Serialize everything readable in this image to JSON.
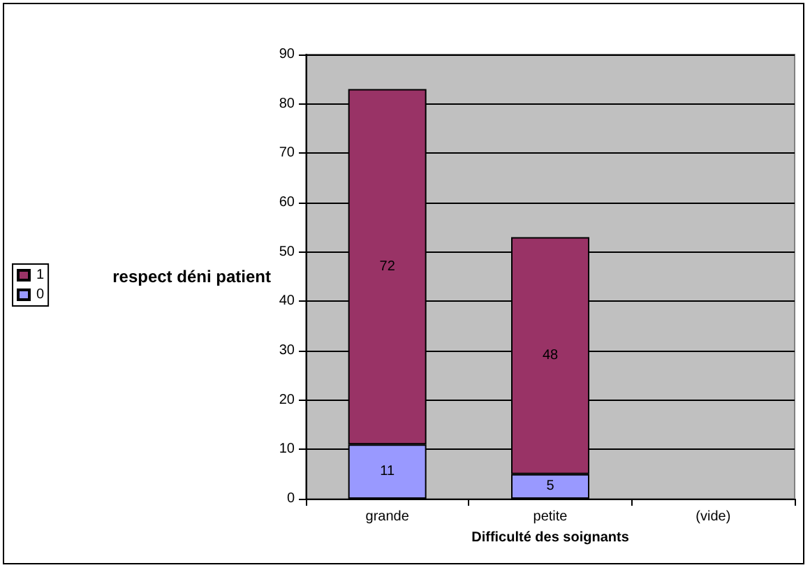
{
  "chart_data": {
    "type": "bar",
    "stacked": true,
    "xlabel": "Difficulté des soignants",
    "ylabel": "respect déni patient",
    "categories": [
      "grande",
      "petite",
      "(vide)"
    ],
    "series": [
      {
        "name": "0",
        "color": "#9999ff",
        "values": [
          11,
          5,
          null
        ]
      },
      {
        "name": "1",
        "color": "#993366",
        "values": [
          72,
          48,
          null
        ]
      }
    ],
    "ylim": [
      0,
      90
    ],
    "yticks": [
      0,
      10,
      20,
      30,
      40,
      50,
      60,
      70,
      80,
      90
    ],
    "grid": "y",
    "legend": "left",
    "data_labels": true
  }
}
